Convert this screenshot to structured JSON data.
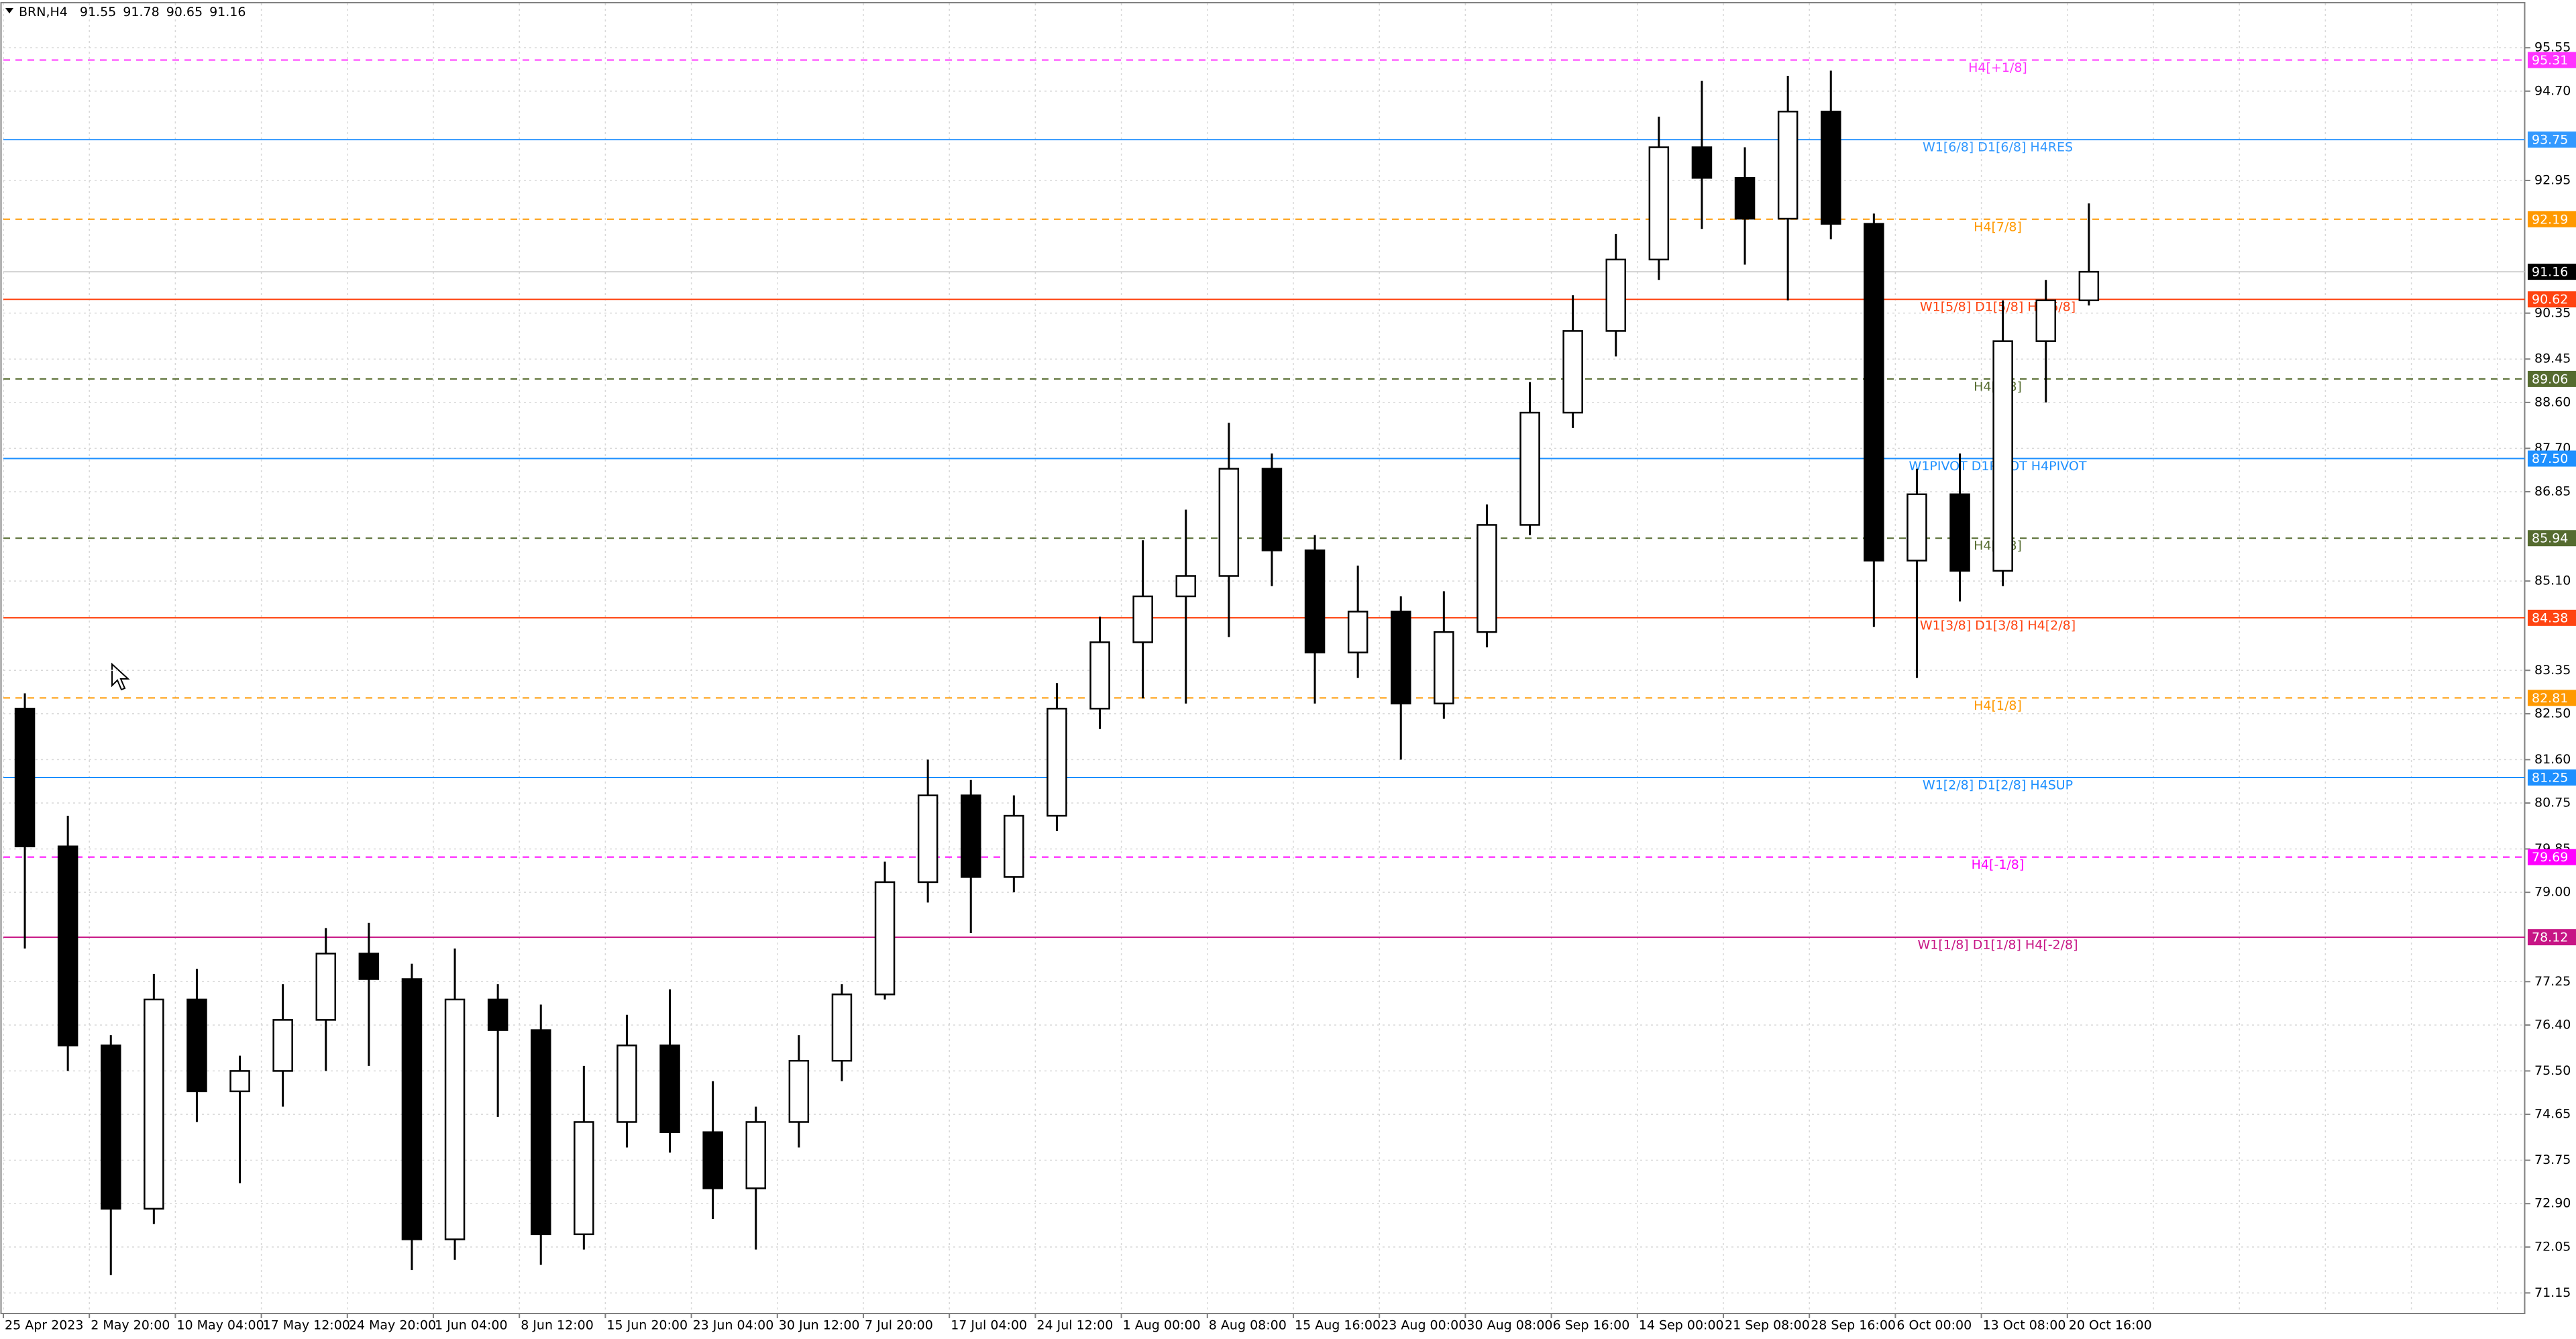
{
  "chart_data": {
    "type": "candlestick",
    "title": "BRN,H4",
    "ohlc_header": [
      91.55,
      91.78,
      90.65,
      91.16
    ],
    "categories": [
      "25 Apr 2023",
      null,
      "2 May 20:00",
      null,
      "10 May 04:00",
      null,
      "17 May 12:00",
      null,
      "24 May 20:00",
      null,
      "1 Jun 04:00",
      null,
      "8 Jun 12:00",
      null,
      "15 Jun 20:00",
      null,
      "23 Jun 04:00",
      null,
      "30 Jun 12:00",
      null,
      "7 Jul 20:00",
      null,
      "17 Jul 04:00",
      null,
      "24 Jul 12:00",
      null,
      "1 Aug 00:00",
      null,
      "8 Aug 08:00",
      null,
      "15 Aug 16:00",
      null,
      "23 Aug 00:00",
      null,
      "30 Aug 08:00",
      null,
      "6 Sep 16:00",
      null,
      "14 Sep 00:00",
      null,
      "21 Sep 08:00",
      null,
      "28 Sep 16:00",
      null,
      "6 Oct 00:00",
      null,
      "13 Oct 08:00",
      null,
      "20 Oct 16:00"
    ],
    "open": [
      82.6,
      79.9,
      76.0,
      72.8,
      76.9,
      75.1,
      75.5,
      76.5,
      77.8,
      77.3,
      72.2,
      76.9,
      76.3,
      72.3,
      74.5,
      76.0,
      74.3,
      73.2,
      74.5,
      75.7,
      77.0,
      79.2,
      80.9,
      79.3,
      80.5,
      82.6,
      83.9,
      84.8,
      85.2,
      87.3,
      85.7,
      83.7,
      84.5,
      82.7,
      84.1,
      86.2,
      88.4,
      90.0,
      91.4,
      93.6,
      93.0,
      92.2,
      94.3,
      92.1,
      85.5,
      86.8,
      85.3,
      89.8,
      90.6
    ],
    "high": [
      82.9,
      80.5,
      76.2,
      77.4,
      77.5,
      75.8,
      77.2,
      78.3,
      78.4,
      77.6,
      77.9,
      77.2,
      76.8,
      75.6,
      76.6,
      77.1,
      75.3,
      74.8,
      76.2,
      77.2,
      79.6,
      81.6,
      81.2,
      80.9,
      83.1,
      84.4,
      85.9,
      86.5,
      88.2,
      87.6,
      86.0,
      85.4,
      84.8,
      84.9,
      86.6,
      89.0,
      90.7,
      91.9,
      94.2,
      94.9,
      93.6,
      95.0,
      95.1,
      92.3,
      87.3,
      87.6,
      90.6,
      91.0,
      92.5
    ],
    "low": [
      77.9,
      75.5,
      71.5,
      72.5,
      74.5,
      73.3,
      74.8,
      75.5,
      75.6,
      71.6,
      71.8,
      74.6,
      71.7,
      72.0,
      74.0,
      73.9,
      72.6,
      72.0,
      74.0,
      75.3,
      76.9,
      78.8,
      78.2,
      79.0,
      80.2,
      82.2,
      82.8,
      82.7,
      84.0,
      85.0,
      82.7,
      83.2,
      81.6,
      82.4,
      83.8,
      86.0,
      88.1,
      89.5,
      91.0,
      92.0,
      91.3,
      90.6,
      91.8,
      84.2,
      83.2,
      84.7,
      85.0,
      88.6,
      90.5
    ],
    "close": [
      79.9,
      76.0,
      72.8,
      76.9,
      75.1,
      75.5,
      76.5,
      77.8,
      77.3,
      72.2,
      76.9,
      76.3,
      72.3,
      74.5,
      76.0,
      74.3,
      73.2,
      74.5,
      75.7,
      77.0,
      79.2,
      80.9,
      79.3,
      80.5,
      82.6,
      83.9,
      84.8,
      85.2,
      87.3,
      85.7,
      83.7,
      84.5,
      82.7,
      84.1,
      86.2,
      88.4,
      90.0,
      91.4,
      93.6,
      93.0,
      92.2,
      94.3,
      92.1,
      85.5,
      86.8,
      85.3,
      89.8,
      90.6,
      91.16
    ],
    "up_color": "#ffffff",
    "down_color": "#000000",
    "outline_color": "#000000",
    "ylim": [
      70.76,
      96.42
    ],
    "yticks": [
      95.55,
      {
        "value": 94.7,
        "label": "94.70"
      },
      92.95,
      90.35,
      89.45,
      {
        "value": 88.6,
        "label": "88.60"
      },
      {
        "value": 87.7,
        "label": "87.70"
      },
      86.85,
      {
        "value": 85.1,
        "label": "85.10"
      },
      83.35,
      {
        "value": 82.5,
        "label": "82.50"
      },
      {
        "value": 81.6,
        "label": "81.60"
      },
      80.75,
      79.85,
      {
        "value": 79.0,
        "label": "79.00"
      },
      77.25,
      {
        "value": 76.4,
        "label": "76.40"
      },
      {
        "value": 75.5,
        "label": "75.50"
      },
      74.65,
      73.75,
      {
        "value": 72.9,
        "label": "72.90"
      },
      72.05,
      71.15
    ],
    "grid": true,
    "current_price": 91.16,
    "levels": [
      {
        "name": "H4[+1/8]",
        "value": 95.31,
        "color": "#ff33ff",
        "dashed": true
      },
      {
        "name": "W1[6/8] D1[6/8] H4RES",
        "value": 93.75,
        "color": "#3399ff",
        "dashed": false
      },
      {
        "name": "H4[7/8]",
        "value": 92.19,
        "color": "#ff9900",
        "dashed": true
      },
      {
        "name": "W1[5/8] D1[5/8] H4[6/8]",
        "value": 90.62,
        "color": "#ff4411",
        "dashed": false
      },
      {
        "name": "H4[5/8]",
        "value": 89.06,
        "color": "#556b2f",
        "dashed": true
      },
      {
        "name": "W1PIVOT D1PIVOT H4PIVOT",
        "value": {
          "value": 87.5,
          "label": "87.50"
        },
        "color": "#1e90ff",
        "dashed": false
      },
      {
        "name": "H4[3/8]",
        "value": 85.94,
        "color": "#556b2f",
        "dashed": true
      },
      {
        "name": "W1[3/8] D1[3/8] H4[2/8]",
        "value": 84.38,
        "color": "#ff4411",
        "dashed": false
      },
      {
        "name": "H4[1/8]",
        "value": 82.81,
        "color": "#ff9900",
        "dashed": true
      },
      {
        "name": "W1[2/8] D1[2/8] H4SUP",
        "value": 81.25,
        "color": "#1e90ff",
        "dashed": false
      },
      {
        "name": "H4[-1/8]",
        "value": 79.69,
        "color": "#ff00ff",
        "dashed": true
      },
      {
        "name": "W1[1/8] D1[1/8] H4[-2/8]",
        "value": 78.12,
        "color": "#c71585",
        "dashed": false
      }
    ]
  }
}
